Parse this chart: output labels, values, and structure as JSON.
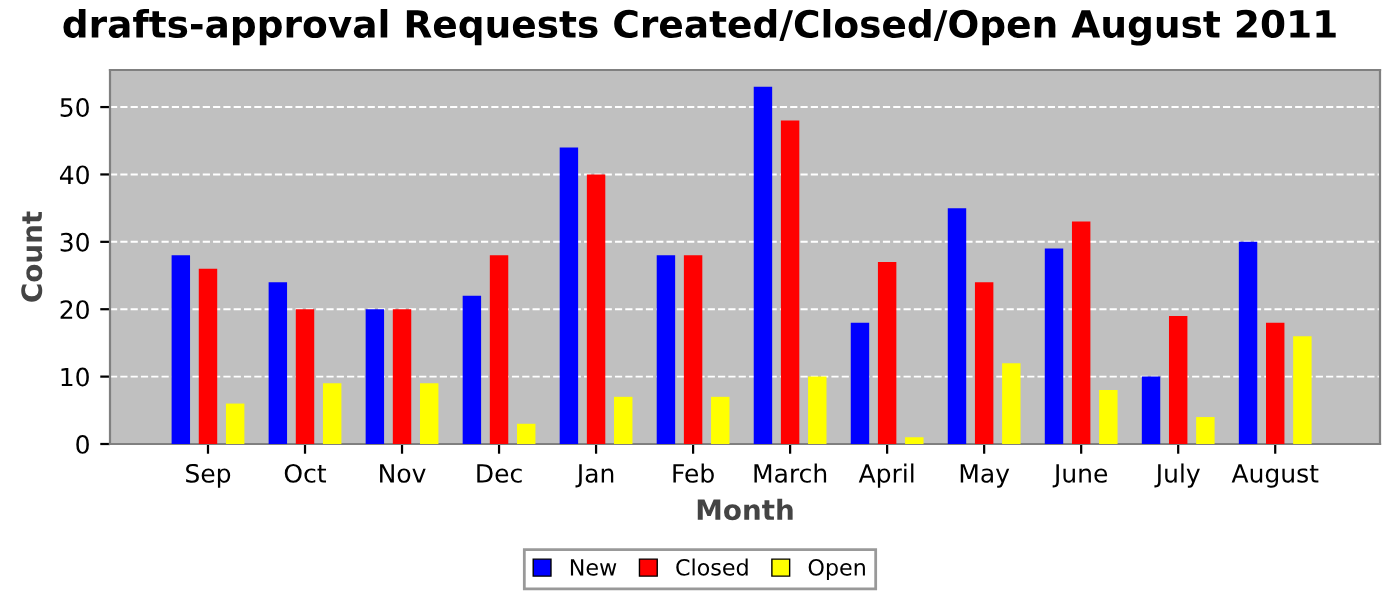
{
  "chart_data": {
    "type": "bar",
    "title": "drafts-approval Requests Created/Closed/Open August 2011",
    "xlabel": "Month",
    "ylabel": "Count",
    "categories": [
      "Sep",
      "Oct",
      "Nov",
      "Dec",
      "Jan",
      "Feb",
      "March",
      "April",
      "May",
      "June",
      "July",
      "August"
    ],
    "series": [
      {
        "name": "New",
        "color": "#0000ff",
        "values": [
          28,
          24,
          20,
          22,
          44,
          28,
          53,
          18,
          35,
          29,
          10,
          30
        ]
      },
      {
        "name": "Closed",
        "color": "#ff0000",
        "values": [
          26,
          20,
          20,
          28,
          40,
          28,
          48,
          27,
          24,
          33,
          19,
          18
        ]
      },
      {
        "name": "Open",
        "color": "#ffff00",
        "values": [
          6,
          9,
          9,
          3,
          7,
          7,
          10,
          1,
          12,
          8,
          4,
          16
        ]
      }
    ],
    "ylim": [
      0,
      55.5
    ],
    "yticks": [
      0,
      10,
      20,
      30,
      40,
      50
    ],
    "grid": "y",
    "legend": "bottom"
  }
}
